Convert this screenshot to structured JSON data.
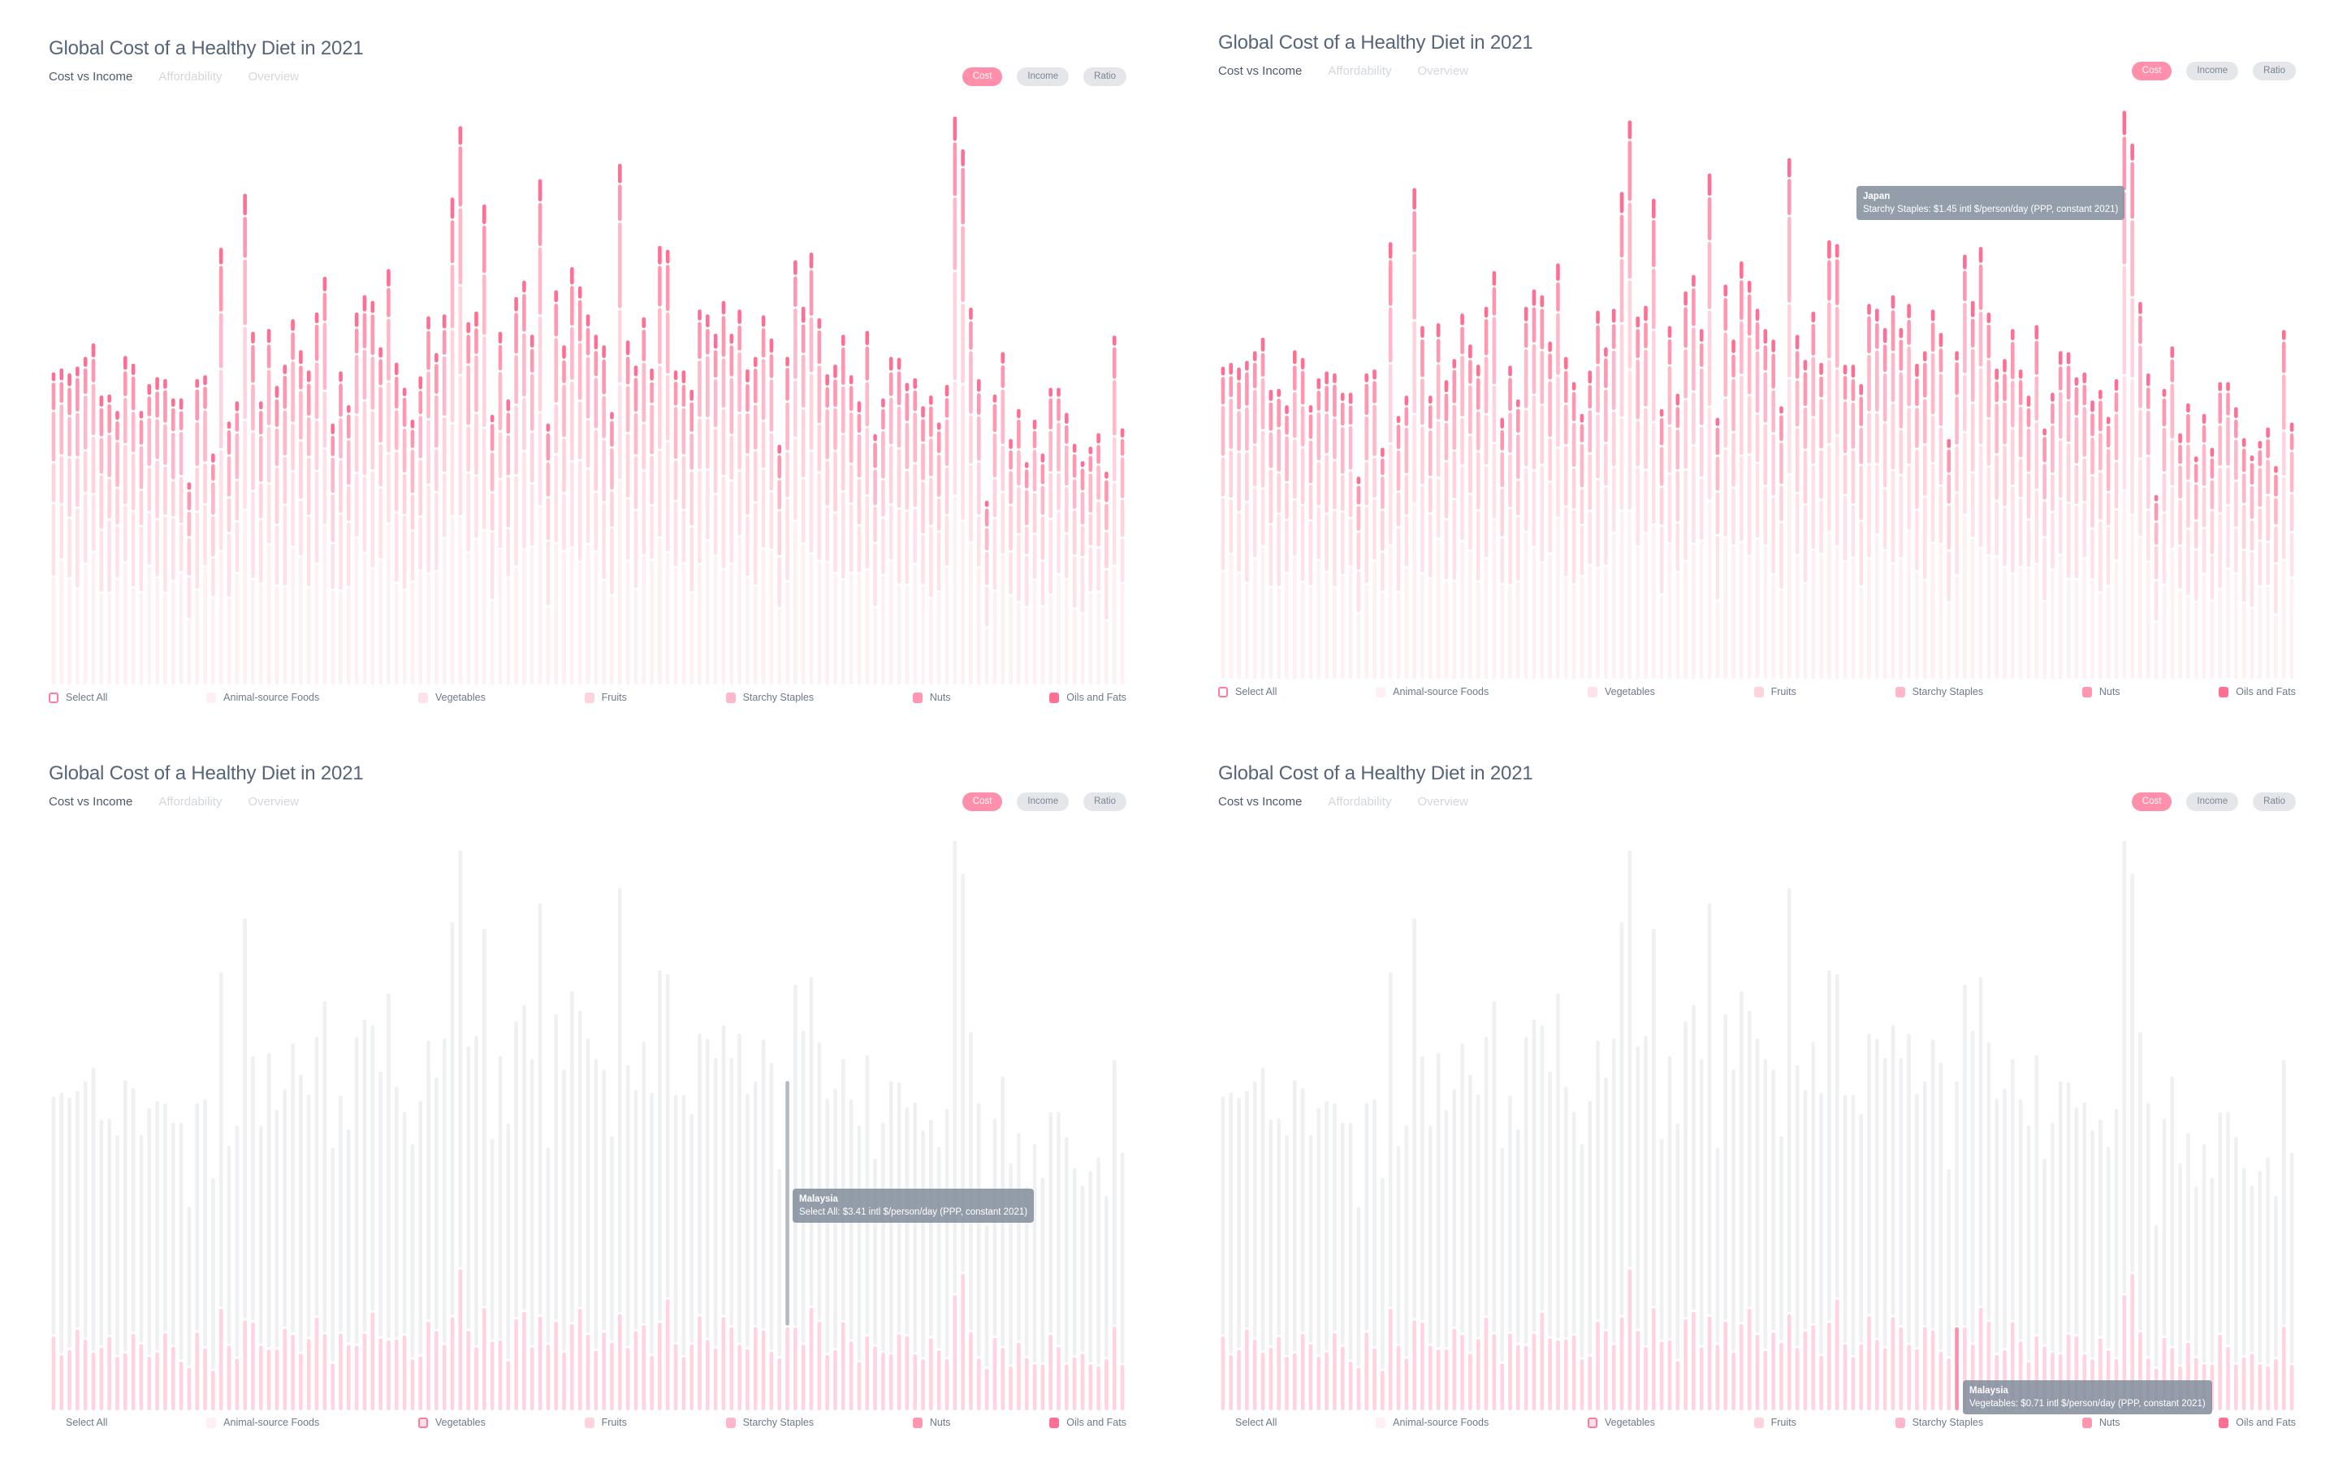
{
  "panels": [
    {
      "title": "Global Cost of a Healthy Diet in 2021",
      "tabs": [
        "Cost vs Income",
        "Affordability",
        "Overview"
      ],
      "buttons": [
        "Cost",
        "Income",
        "Ratio"
      ],
      "selected_legend": "Select All",
      "mode": "stacked",
      "tooltip": null
    },
    {
      "title": "Global Cost of a Healthy Diet in 2021",
      "tabs": [
        "Cost vs Income",
        "Affordability",
        "Overview"
      ],
      "buttons": [
        "Cost",
        "Income",
        "Ratio"
      ],
      "selected_legend": "Select All",
      "mode": "stacked",
      "tooltip": {
        "country": "Japan",
        "text": "Starchy Staples: $1.45 intl $/person/day (PPP, constant 2021)"
      }
    },
    {
      "title": "Global Cost of a Healthy Diet in 2021",
      "tabs": [
        "Cost vs Income",
        "Affordability",
        "Overview"
      ],
      "buttons": [
        "Cost",
        "Income",
        "Ratio"
      ],
      "selected_legend": "Vegetables",
      "mode": "vegetables",
      "hover_country_index": 92,
      "tooltip": {
        "country": "Malaysia",
        "text": "Select All: $3.41 intl $/person/day (PPP, constant 2021)"
      }
    },
    {
      "title": "Global Cost of a Healthy Diet in 2021",
      "tabs": [
        "Cost vs Income",
        "Affordability",
        "Overview"
      ],
      "buttons": [
        "Cost",
        "Income",
        "Ratio"
      ],
      "selected_legend": "Vegetables",
      "mode": "vegetables",
      "hover_country_index": 92,
      "tooltip": {
        "country": "Malaysia",
        "text": "Vegetables: $0.71 intl $/person/day (PPP, constant 2021)"
      }
    }
  ],
  "legend": [
    "Select All",
    "Animal-source Foods",
    "Vegetables",
    "Fruits",
    "Starchy Staples",
    "Nuts",
    "Oils and Fats"
  ],
  "colors": {
    "animal": "#fff0f3",
    "vegetables": "#ffe2e9",
    "fruits": "#ffd3de",
    "starchy": "#ffb8ca",
    "nuts": "#ff97b1",
    "oils": "#ff6f93",
    "inactive": "#eff0f2",
    "accent": "#ff8fab"
  },
  "chart_data": {
    "type": "bar",
    "stacked": true,
    "title": "Global Cost of a Healthy Diet in 2021",
    "ylabel": "intl $/person/day (PPP, constant 2021)",
    "ylim": [
      0,
      5.9
    ],
    "series_names": [
      "Animal-source Foods",
      "Vegetables",
      "Fruits",
      "Starchy Staples",
      "Nuts",
      "Oils and Fats"
    ],
    "approx_shares": [
      0.35,
      0.21,
      0.16,
      0.15,
      0.09,
      0.04
    ],
    "totals": [
      3.25,
      3.29,
      3.24,
      3.31,
      3.41,
      3.55,
      3.01,
      3.02,
      2.85,
      3.42,
      3.34,
      2.85,
      3.13,
      3.2,
      3.18,
      2.98,
      2.98,
      2.11,
      3.18,
      3.22,
      2.41,
      4.54,
      2.74,
      2.95,
      5.1,
      3.67,
      2.95,
      3.7,
      3.11,
      3.33,
      3.8,
      3.48,
      3.27,
      3.87,
      4.24,
      2.72,
      3.26,
      2.91,
      3.87,
      4.05,
      3.99,
      3.51,
      4.32,
      3.35,
      3.09,
      2.76,
      3.21,
      3.83,
      3.45,
      3.85,
      5.06,
      5.8,
      3.77,
      3.88,
      4.99,
      2.81,
      3.67,
      2.97,
      4.03,
      4.2,
      3.64,
      5.25,
      2.72,
      4.1,
      3.53,
      4.34,
      4.14,
      3.85,
      3.64,
      3.53,
      2.84,
      5.41,
      3.58,
      3.32,
      3.82,
      3.29,
      4.56,
      4.52,
      3.27,
      3.27,
      3.07,
      3.9,
      3.85,
      3.65,
      3.99,
      3.65,
      3.9,
      3.28,
      3.41,
      3.84,
      3.6,
      2.5,
      3.41,
      4.41,
      3.93,
      4.49,
      3.81,
      3.23,
      3.33,
      3.64,
      3.22,
      2.95,
      3.68,
      2.61,
      2.98,
      3.41,
      3.4,
      3.14,
      3.19,
      2.9,
      3.01,
      2.73,
      3.12,
      5.9,
      5.56,
      3.92,
      3.18,
      1.92,
      3.02,
      3.46,
      2.56,
      2.87,
      2.32,
      2.76,
      2.41,
      3.09,
      3.09,
      2.83,
      2.51,
      2.33,
      2.48,
      2.62,
      2.22,
      3.63,
      2.67
    ]
  }
}
